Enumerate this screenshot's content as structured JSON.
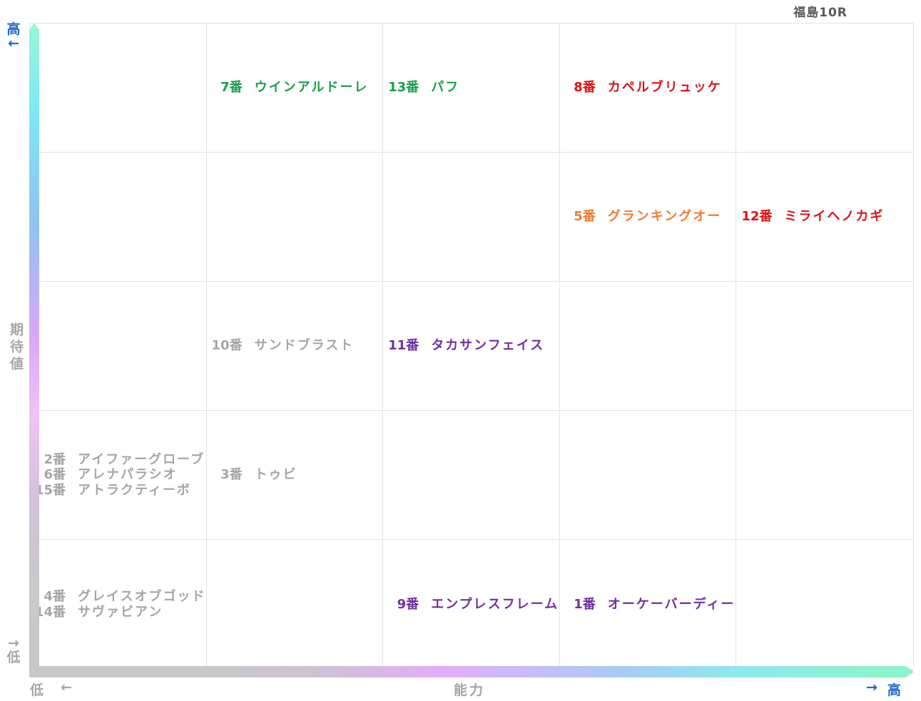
{
  "title": "福島10R",
  "axes": {
    "y": {
      "label": "期待値",
      "high": "高",
      "high_arrow": "←",
      "low_arrow": "→",
      "low": "低"
    },
    "x": {
      "label": "能力",
      "low": "低",
      "low_arrow": "←",
      "high_arrow": "→",
      "high": "高"
    }
  },
  "colors": {
    "green": "#18a04d",
    "red": "#e01111",
    "orange": "#ed7d31",
    "purple": "#7030a0",
    "gray": "#a6a6a6",
    "axis_blue": "#2068c8",
    "axis_gray": "#a6a6a6",
    "title_gray": "#595959"
  },
  "grid": {
    "rows": 5,
    "cols": 5
  },
  "cells": [
    {
      "row": 0,
      "col": 1,
      "entries": [
        {
          "num": "7番",
          "name": "ウインアルドーレ",
          "color": "green"
        }
      ]
    },
    {
      "row": 0,
      "col": 2,
      "entries": [
        {
          "num": "13番",
          "name": "パフ",
          "color": "green"
        }
      ]
    },
    {
      "row": 0,
      "col": 3,
      "entries": [
        {
          "num": "8番",
          "name": "カペルブリュッケ",
          "color": "red"
        }
      ]
    },
    {
      "row": 1,
      "col": 3,
      "entries": [
        {
          "num": "5番",
          "name": "グランキングオー",
          "color": "orange"
        }
      ]
    },
    {
      "row": 1,
      "col": 4,
      "entries": [
        {
          "num": "12番",
          "name": "ミライヘノカギ",
          "color": "red"
        }
      ]
    },
    {
      "row": 2,
      "col": 1,
      "entries": [
        {
          "num": "10番",
          "name": "サンドブラスト",
          "color": "gray"
        }
      ]
    },
    {
      "row": 2,
      "col": 2,
      "entries": [
        {
          "num": "11番",
          "name": "タカサンフェイス",
          "color": "purple"
        }
      ]
    },
    {
      "row": 3,
      "col": 0,
      "entries": [
        {
          "num": "2番",
          "name": "アイファーグローブ",
          "color": "gray"
        },
        {
          "num": "6番",
          "name": "アレナパラシオ",
          "color": "gray"
        },
        {
          "num": "15番",
          "name": "アトラクティーボ",
          "color": "gray"
        }
      ]
    },
    {
      "row": 3,
      "col": 1,
      "entries": [
        {
          "num": "3番",
          "name": "トゥビ",
          "color": "gray"
        }
      ]
    },
    {
      "row": 4,
      "col": 0,
      "entries": [
        {
          "num": "4番",
          "name": "グレイスオブゴッド",
          "color": "gray"
        },
        {
          "num": "14番",
          "name": "サヴァビアン",
          "color": "gray"
        }
      ]
    },
    {
      "row": 4,
      "col": 2,
      "entries": [
        {
          "num": "9番",
          "name": "エンプレスフレーム",
          "color": "purple"
        }
      ]
    },
    {
      "row": 4,
      "col": 3,
      "entries": [
        {
          "num": "1番",
          "name": "オーケーバーディー",
          "color": "purple"
        }
      ]
    }
  ],
  "chart_data": {
    "type": "scatter",
    "title": "福島10R",
    "xlabel": "能力",
    "ylabel": "期待値",
    "x_axis_ends": {
      "left": "低",
      "right": "高"
    },
    "y_axis_ends": {
      "top": "高",
      "bottom": "低"
    },
    "grid": "5x5 matrix, ability 1(low)-5(high) left to right, expectation 1(low)-5(high) bottom to top",
    "points": [
      {
        "number": 7,
        "name": "ウインアルドーレ",
        "ability": 2,
        "expectation": 5,
        "color": "#18a04d"
      },
      {
        "number": 13,
        "name": "パフ",
        "ability": 3,
        "expectation": 5,
        "color": "#18a04d"
      },
      {
        "number": 8,
        "name": "カペルブリュッケ",
        "ability": 4,
        "expectation": 5,
        "color": "#e01111"
      },
      {
        "number": 5,
        "name": "グランキングオー",
        "ability": 4,
        "expectation": 4,
        "color": "#ed7d31"
      },
      {
        "number": 12,
        "name": "ミライヘノカギ",
        "ability": 5,
        "expectation": 4,
        "color": "#e01111"
      },
      {
        "number": 10,
        "name": "サンドブラスト",
        "ability": 2,
        "expectation": 3,
        "color": "#a6a6a6"
      },
      {
        "number": 11,
        "name": "タカサンフェイス",
        "ability": 3,
        "expectation": 3,
        "color": "#7030a0"
      },
      {
        "number": 2,
        "name": "アイファーグローブ",
        "ability": 1,
        "expectation": 2,
        "color": "#a6a6a6"
      },
      {
        "number": 6,
        "name": "アレナパラシオ",
        "ability": 1,
        "expectation": 2,
        "color": "#a6a6a6"
      },
      {
        "number": 15,
        "name": "アトラクティーボ",
        "ability": 1,
        "expectation": 2,
        "color": "#a6a6a6"
      },
      {
        "number": 3,
        "name": "トゥビ",
        "ability": 2,
        "expectation": 2,
        "color": "#a6a6a6"
      },
      {
        "number": 4,
        "name": "グレイスオブゴッド",
        "ability": 1,
        "expectation": 1,
        "color": "#a6a6a6"
      },
      {
        "number": 14,
        "name": "サヴァビアン",
        "ability": 1,
        "expectation": 1,
        "color": "#a6a6a6"
      },
      {
        "number": 9,
        "name": "エンプレスフレーム",
        "ability": 3,
        "expectation": 1,
        "color": "#7030a0"
      },
      {
        "number": 1,
        "name": "オーケーバーディー",
        "ability": 4,
        "expectation": 1,
        "color": "#7030a0"
      }
    ]
  }
}
